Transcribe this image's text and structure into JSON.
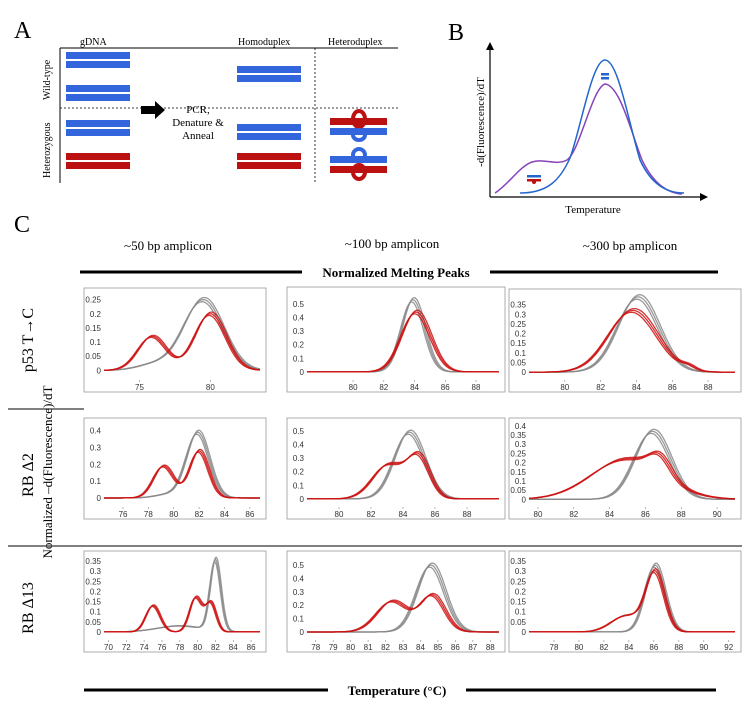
{
  "panel_a": {
    "letter": "A",
    "col_gdna": "gDNA",
    "col_homoduplex": "Homoduplex",
    "col_heteroduplex": "Heteroduplex",
    "row_wildtype": "Wild-type",
    "row_heterozygous": "Heterozygous",
    "step_line1": "PCR,",
    "step_line2": "Denature &",
    "step_line3": "Anneal",
    "colors": {
      "wildtype": "#3366dd",
      "mutant": "#bb1111"
    }
  },
  "panel_b": {
    "letter": "B",
    "ylabel": "-d(Fluorescence)/dT",
    "xlabel": "Temperature"
  },
  "panel_c": {
    "letter": "C",
    "column_titles": [
      "~50 bp amplicon",
      "~100 bp amplicon",
      "~300 bp amplicon"
    ],
    "banner_top": "Normalized  Melting Peaks",
    "banner_bottom": "Temperature  (°C)",
    "ylabel": "Normalized  –d(Fluorescence)/dT",
    "row_labels": [
      "p53 T→C",
      "RB Δ2",
      "RB Δ13"
    ]
  },
  "chart_data": [
    {
      "type": "line",
      "title": "p53 T→C, ~50 bp amplicon",
      "xlim": [
        72.5,
        83.5
      ],
      "ylim": [
        -0.02,
        0.27
      ],
      "xticks": [
        75,
        80
      ],
      "yticks": [
        0,
        0.05,
        0.1,
        0.15,
        0.2,
        0.25
      ],
      "series": [
        {
          "name": "wild-type",
          "color": "#888888",
          "peaks": [
            [
              79.5,
              0.25,
              1.4
            ],
            [
              76,
              0.02,
              1.2
            ]
          ]
        },
        {
          "name": "heterozygous",
          "color": "#cc1111",
          "peaks": [
            [
              75.9,
              0.12,
              1.0
            ],
            [
              80,
              0.2,
              1.1
            ]
          ]
        }
      ]
    },
    {
      "type": "line",
      "title": "p53 T→C, ~100 bp amplicon",
      "xlim": [
        77,
        89.5
      ],
      "ylim": [
        -0.03,
        0.58
      ],
      "xticks": [
        80,
        82,
        84,
        86,
        88
      ],
      "yticks": [
        0,
        0.1,
        0.2,
        0.3,
        0.4,
        0.5
      ],
      "series": [
        {
          "name": "wild-type",
          "color": "#888888",
          "peaks": [
            [
              83.9,
              0.53,
              0.75
            ]
          ]
        },
        {
          "name": "heterozygous",
          "color": "#cc1111",
          "peaks": [
            [
              84.1,
              0.44,
              0.95
            ]
          ]
        }
      ]
    },
    {
      "type": "line",
      "title": "p53 T→C, ~300 bp amplicon",
      "xlim": [
        78,
        89.5
      ],
      "ylim": [
        -0.02,
        0.4
      ],
      "xticks": [
        80,
        82,
        84,
        86,
        88
      ],
      "yticks": [
        0,
        0.05,
        0.1,
        0.15,
        0.2,
        0.25,
        0.3,
        0.35
      ],
      "series": [
        {
          "name": "wild-type",
          "color": "#888888",
          "peaks": [
            [
              84.1,
              0.39,
              1.15
            ]
          ]
        },
        {
          "name": "heterozygous",
          "color": "#cc1111",
          "peaks": [
            [
              83.8,
              0.32,
              1.35
            ],
            [
              86.9,
              0.02,
              0.4
            ]
          ]
        }
      ]
    },
    {
      "type": "line",
      "title": "RB Δ2, ~50 bp amplicon",
      "xlim": [
        74.5,
        86.8
      ],
      "ylim": [
        -0.03,
        0.44
      ],
      "xticks": [
        76,
        78,
        80,
        82,
        84,
        86
      ],
      "yticks": [
        0,
        0.1,
        0.2,
        0.3,
        0.4
      ],
      "series": [
        {
          "name": "wild-type",
          "color": "#888888",
          "peaks": [
            [
              81.9,
              0.39,
              0.9
            ],
            [
              79.5,
              0.02,
              1.0
            ]
          ]
        },
        {
          "name": "heterozygous",
          "color": "#cc1111",
          "peaks": [
            [
              79.2,
              0.19,
              0.8
            ],
            [
              82,
              0.28,
              0.75
            ]
          ]
        }
      ]
    },
    {
      "type": "line",
      "title": "RB Δ2, ~100 bp amplicon",
      "xlim": [
        78,
        90
      ],
      "ylim": [
        -0.03,
        0.55
      ],
      "xticks": [
        80,
        82,
        84,
        86,
        88
      ],
      "yticks": [
        0,
        0.1,
        0.2,
        0.3,
        0.4,
        0.5
      ],
      "series": [
        {
          "name": "wild-type",
          "color": "#888888",
          "peaks": [
            [
              84.4,
              0.49,
              0.95
            ]
          ]
        },
        {
          "name": "heterozygous",
          "color": "#cc1111",
          "peaks": [
            [
              83.1,
              0.25,
              1.0
            ],
            [
              85,
              0.29,
              0.7
            ]
          ]
        }
      ]
    },
    {
      "type": "line",
      "title": "RB Δ2, ~300 bp amplicon",
      "xlim": [
        79.5,
        91
      ],
      "ylim": [
        -0.02,
        0.41
      ],
      "xticks": [
        80,
        82,
        84,
        86,
        88,
        90
      ],
      "yticks": [
        0,
        0.05,
        0.1,
        0.15,
        0.2,
        0.25,
        0.3,
        0.35,
        0.4
      ],
      "series": [
        {
          "name": "wild-type",
          "color": "#888888",
          "peaks": [
            [
              86.4,
              0.37,
              1.0
            ]
          ]
        },
        {
          "name": "heterozygous",
          "color": "#cc1111",
          "peaks": [
            [
              85,
              0.22,
              2.0
            ],
            [
              86.8,
              0.1,
              0.6
            ]
          ]
        }
      ]
    },
    {
      "type": "line",
      "title": "RB Δ13, ~50 bp amplicon",
      "xlim": [
        69.5,
        87
      ],
      "ylim": [
        -0.02,
        0.37
      ],
      "xticks": [
        70,
        72,
        74,
        76,
        78,
        80,
        82,
        84,
        86
      ],
      "yticks": [
        0,
        0.05,
        0.1,
        0.15,
        0.2,
        0.25,
        0.3,
        0.35
      ],
      "series": [
        {
          "name": "wild-type",
          "color": "#888888",
          "peaks": [
            [
              82,
              0.35,
              0.6
            ],
            [
              78,
              0.03,
              2.5
            ]
          ]
        },
        {
          "name": "heterozygous",
          "color": "#cc1111",
          "peaks": [
            [
              75,
              0.13,
              0.8
            ],
            [
              79.8,
              0.17,
              0.7
            ],
            [
              81.5,
              0.14,
              0.6
            ]
          ]
        }
      ]
    },
    {
      "type": "line",
      "title": "RB Δ13, ~100 bp amplicon",
      "xlim": [
        77.5,
        88.5
      ],
      "ylim": [
        -0.03,
        0.56
      ],
      "xticks": [
        78,
        79,
        80,
        81,
        82,
        83,
        84,
        85,
        86,
        87,
        88
      ],
      "yticks": [
        0,
        0.1,
        0.2,
        0.3,
        0.4,
        0.5
      ],
      "series": [
        {
          "name": "wild-type",
          "color": "#888888",
          "peaks": [
            [
              84.6,
              0.5,
              0.8
            ]
          ]
        },
        {
          "name": "heterozygous",
          "color": "#cc1111",
          "peaks": [
            [
              82.4,
              0.23,
              0.9
            ],
            [
              84.7,
              0.27,
              0.7
            ]
          ]
        }
      ]
    },
    {
      "type": "line",
      "title": "RB Δ13, ~300 bp amplicon",
      "xlim": [
        76,
        92.5
      ],
      "ylim": [
        -0.02,
        0.37
      ],
      "xticks": [
        78,
        80,
        82,
        84,
        86,
        88,
        90,
        92
      ],
      "yticks": [
        0,
        0.05,
        0.1,
        0.15,
        0.2,
        0.25,
        0.3,
        0.35
      ],
      "series": [
        {
          "name": "wild-type",
          "color": "#888888",
          "peaks": [
            [
              86.1,
              0.33,
              0.8
            ]
          ]
        },
        {
          "name": "heterozygous",
          "color": "#cc1111",
          "peaks": [
            [
              86.1,
              0.29,
              0.75
            ],
            [
              83.8,
              0.08,
              1.2
            ]
          ]
        }
      ]
    }
  ]
}
